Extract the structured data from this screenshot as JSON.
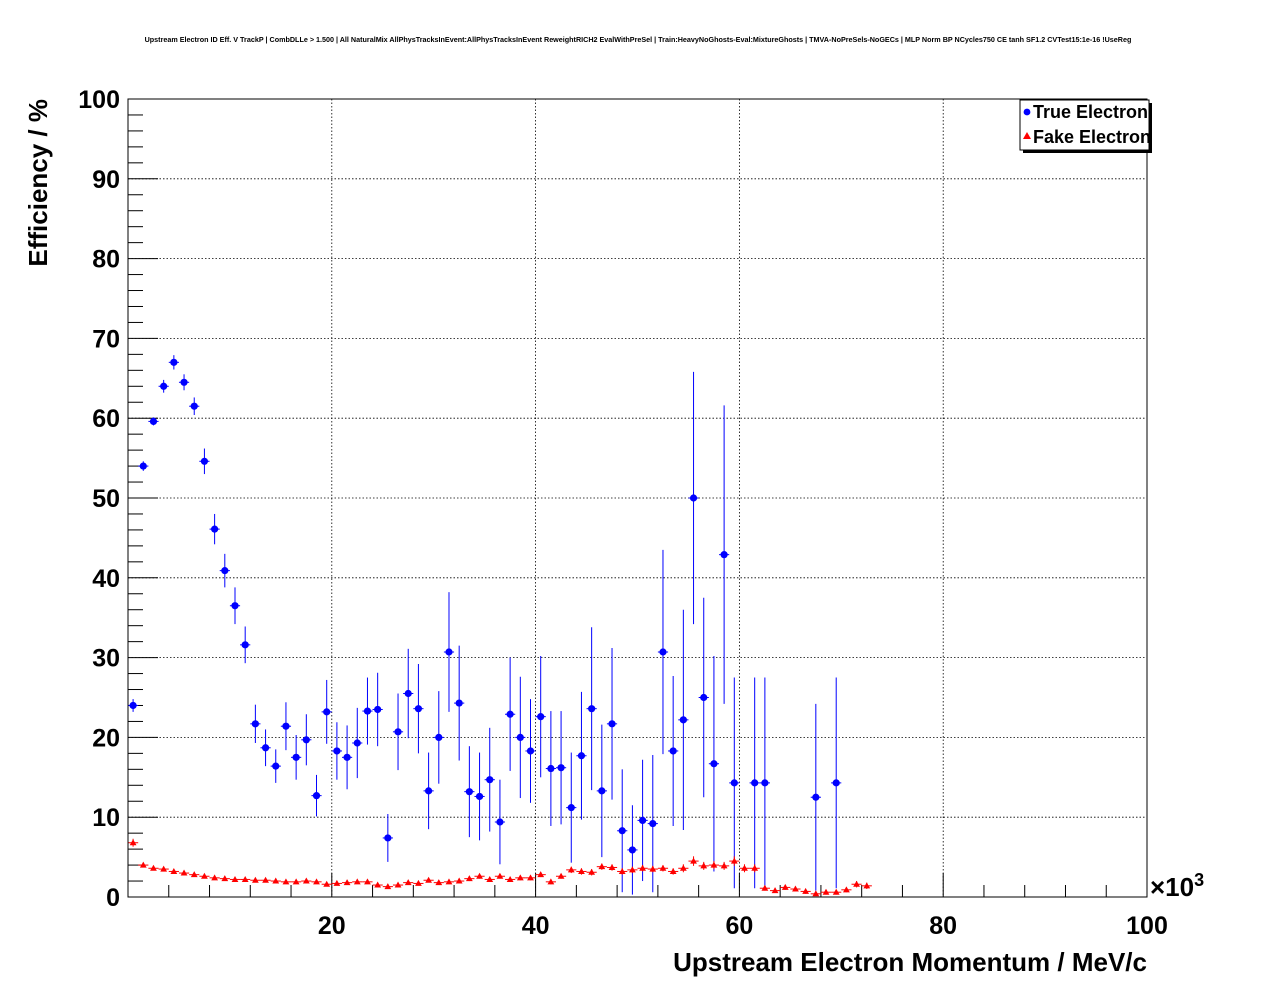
{
  "chart_data": {
    "type": "scatter",
    "title": "Upstream Electron ID Eff. V TrackP | CombDLLe > 1.500 | All NaturalMix AllPhysTracksInEvent:AllPhysTracksInEvent ReweightRICH2 EvalWithPreSel | Train:HeavyNoGhosts-Eval:MixtureGhosts | TMVA-NoPreSels-NoGECs | MLP Norm BP NCycles750 CE tanh SF1.2 CVTest15:1e-16 !UseReg",
    "xlabel": "Upstream Electron Momentum / MeV/c",
    "ylabel": "Efficiency / %",
    "x_multiplier_label": "×10",
    "x_multiplier_exp": "3",
    "xlim": [
      0,
      100000
    ],
    "ylim": [
      0,
      100
    ],
    "x_ticks": [
      20000,
      40000,
      60000,
      80000,
      100000
    ],
    "x_tick_labels": [
      "20",
      "40",
      "60",
      "80",
      "100"
    ],
    "y_ticks": [
      0,
      10,
      20,
      30,
      40,
      50,
      60,
      70,
      80,
      90,
      100
    ],
    "y_tick_labels": [
      "0",
      "10",
      "20",
      "30",
      "40",
      "50",
      "60",
      "70",
      "80",
      "90",
      "100"
    ],
    "grid": true,
    "legend_position": "top-right",
    "colors": {
      "true": "#0000ff",
      "fake": "#ff0000"
    },
    "series": [
      {
        "name": "True Electron",
        "marker": "circle",
        "x": [
          500,
          1500,
          2500,
          3500,
          4500,
          5500,
          6500,
          7500,
          8500,
          9500,
          10500,
          11500,
          12500,
          13500,
          14500,
          15500,
          16500,
          17500,
          18500,
          19500,
          20500,
          21500,
          22500,
          23500,
          24500,
          25500,
          26500,
          27500,
          28500,
          29500,
          30500,
          31500,
          32500,
          33500,
          34500,
          35500,
          36500,
          37500,
          38500,
          39500,
          40500,
          41500,
          42500,
          43500,
          44500,
          45500,
          46500,
          47500,
          48500,
          49500,
          50500,
          51500,
          52500,
          53500,
          54500,
          55500,
          56500,
          57500,
          58500,
          59500,
          61500,
          62500,
          67500,
          69500
        ],
        "y": [
          24,
          54,
          59.6,
          64,
          67,
          64.5,
          61.5,
          54.6,
          46.1,
          40.9,
          36.5,
          31.6,
          21.7,
          18.7,
          16.4,
          21.4,
          17.5,
          19.7,
          12.7,
          23.2,
          18.3,
          17.5,
          19.3,
          23.3,
          23.5,
          7.4,
          20.7,
          25.5,
          23.6,
          13.3,
          20,
          30.7,
          24.3,
          13.2,
          12.6,
          14.7,
          9.4,
          22.9,
          20,
          18.3,
          22.6,
          16.1,
          16.2,
          11.2,
          17.7,
          23.6,
          13.3,
          21.7,
          8.3,
          5.9,
          9.6,
          9.2,
          30.7,
          18.3,
          22.2,
          50,
          25,
          16.7,
          42.9,
          14.3,
          14.3,
          14.3,
          12.5,
          14.3
        ],
        "yerr": [
          0.8,
          0.6,
          0.5,
          0.8,
          0.9,
          1.0,
          1.1,
          1.6,
          1.9,
          2.1,
          2.3,
          2.3,
          2.4,
          2.3,
          2.1,
          3.0,
          2.8,
          3.2,
          2.6,
          4.0,
          3.6,
          4.0,
          4.4,
          4.2,
          4.6,
          3.0,
          4.8,
          5.6,
          5.6,
          4.8,
          5.8,
          7.5,
          7.2,
          5.7,
          5.5,
          6.5,
          5.3,
          7.1,
          7.6,
          6.5,
          7.6,
          7.2,
          7.1,
          6.9,
          8.0,
          10.2,
          8.3,
          9.5,
          7.7,
          5.6,
          7.6,
          8.6,
          12.8,
          9.4,
          13.8,
          15.8,
          12.5,
          13.5,
          18.7,
          13.2,
          13.2,
          13.2,
          11.7,
          13.2
        ]
      },
      {
        "name": "Fake Electron",
        "marker": "triangle",
        "x": [
          500,
          1500,
          2500,
          3500,
          4500,
          5500,
          6500,
          7500,
          8500,
          9500,
          10500,
          11500,
          12500,
          13500,
          14500,
          15500,
          16500,
          17500,
          18500,
          19500,
          20500,
          21500,
          22500,
          23500,
          24500,
          25500,
          26500,
          27500,
          28500,
          29500,
          30500,
          31500,
          32500,
          33500,
          34500,
          35500,
          36500,
          37500,
          38500,
          39500,
          40500,
          41500,
          42500,
          43500,
          44500,
          45500,
          46500,
          47500,
          48500,
          49500,
          50500,
          51500,
          52500,
          53500,
          54500,
          55500,
          56500,
          57500,
          58500,
          59500,
          60500,
          61500,
          62500,
          63500,
          64500,
          65500,
          66500,
          67500,
          68500,
          69500,
          70500,
          71500,
          72500
        ],
        "y": [
          6.8,
          4.0,
          3.6,
          3.5,
          3.2,
          3.0,
          2.8,
          2.6,
          2.4,
          2.3,
          2.2,
          2.2,
          2.1,
          2.1,
          2.0,
          1.9,
          1.9,
          2.0,
          1.9,
          1.6,
          1.7,
          1.8,
          1.9,
          1.9,
          1.5,
          1.3,
          1.5,
          1.8,
          1.7,
          2.1,
          1.8,
          1.9,
          2.0,
          2.3,
          2.6,
          2.2,
          2.6,
          2.2,
          2.4,
          2.4,
          2.8,
          1.9,
          2.6,
          3.4,
          3.2,
          3.1,
          3.8,
          3.7,
          3.2,
          3.4,
          3.6,
          3.5,
          3.6,
          3.2,
          3.6,
          4.5,
          3.9,
          4.0,
          3.9,
          4.5,
          3.6,
          3.6,
          1.1,
          0.8,
          1.2,
          1.0,
          0.7,
          0.4,
          0.6,
          0.6,
          0.9,
          1.6,
          1.4
        ],
        "yerr": [
          0.5,
          0.3,
          0.2,
          0.2,
          0.2,
          0.2,
          0.2,
          0.2,
          0.2,
          0.2,
          0.2,
          0.2,
          0.2,
          0.2,
          0.2,
          0.2,
          0.2,
          0.2,
          0.2,
          0.2,
          0.2,
          0.2,
          0.2,
          0.2,
          0.2,
          0.2,
          0.2,
          0.2,
          0.2,
          0.2,
          0.2,
          0.2,
          0.2,
          0.3,
          0.3,
          0.3,
          0.3,
          0.3,
          0.3,
          0.3,
          0.3,
          0.3,
          0.3,
          0.4,
          0.4,
          0.4,
          0.4,
          0.4,
          0.4,
          0.4,
          0.4,
          0.4,
          0.4,
          0.4,
          0.5,
          0.6,
          0.5,
          0.5,
          0.5,
          0.6,
          0.5,
          0.5,
          0.3,
          0.3,
          0.3,
          0.3,
          0.3,
          0.2,
          0.3,
          0.3,
          0.3,
          0.4,
          0.4
        ]
      }
    ]
  }
}
